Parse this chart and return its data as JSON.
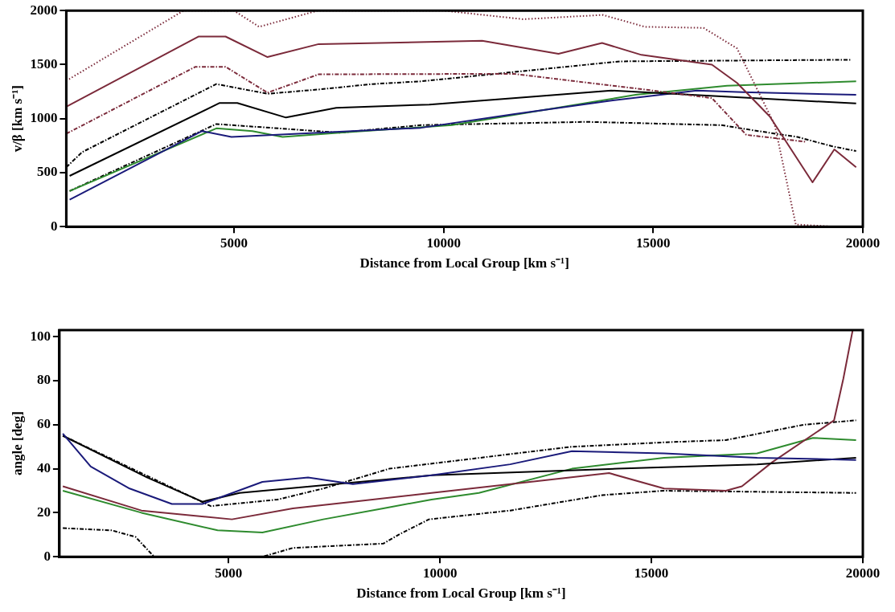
{
  "chart_data": [
    {
      "type": "line",
      "xlabel": "Distance from Local Group [km s⁻¹]",
      "ylabel": "v/β [km s⁻¹]",
      "xlim": [
        1000,
        20000
      ],
      "xticks": [
        5000,
        10000,
        15000,
        20000
      ],
      "ylim": [
        0,
        2000
      ],
      "yticks": [
        0,
        500,
        1000,
        1500,
        2000
      ],
      "grid": false,
      "legend": false,
      "marker": "none",
      "series": [
        {
          "color": "#7b2a3a",
          "line_style": "dotted",
          "x": [
            1000,
            3800,
            5000,
            5600,
            7000,
            10000,
            11900,
            13800,
            14800,
            16200,
            17000,
            17900,
            18400,
            19300
          ],
          "values": [
            1350,
            2000,
            2000,
            1850,
            2000,
            2000,
            1920,
            1960,
            1850,
            1840,
            1650,
            940,
            20,
            0
          ]
        },
        {
          "color": "#7b2a3a",
          "line_style": "solid",
          "x": [
            1000,
            4160,
            4800,
            5800,
            7020,
            10920,
            12740,
            13780,
            14720,
            16400,
            17000,
            17780,
            18800,
            19320,
            19840
          ],
          "values": [
            1110,
            1760,
            1760,
            1570,
            1690,
            1720,
            1600,
            1700,
            1590,
            1500,
            1330,
            1020,
            410,
            715,
            550
          ]
        },
        {
          "color": "#7b2a3a",
          "line_style": "dashed",
          "x": [
            1000,
            4080,
            4800,
            5800,
            7020,
            11660,
            13480,
            14580,
            16400,
            17220,
            18660
          ],
          "values": [
            860,
            1480,
            1480,
            1240,
            1410,
            1415,
            1330,
            1280,
            1190,
            850,
            785
          ]
        },
        {
          "color": "#000000",
          "line_style": "dashed",
          "x": [
            1000,
            1380,
            4580,
            5800,
            7020,
            8300,
            9460,
            14200,
            19700
          ],
          "values": [
            550,
            690,
            1320,
            1230,
            1270,
            1320,
            1345,
            1530,
            1545
          ]
        },
        {
          "color": "#000000",
          "line_style": "solid",
          "x": [
            1080,
            4660,
            5080,
            6240,
            7440,
            9660,
            11660,
            14000,
            19840
          ],
          "values": [
            470,
            1145,
            1145,
            1010,
            1100,
            1130,
            1190,
            1260,
            1140
          ]
        },
        {
          "color": "#1a1a7a",
          "line_style": "solid",
          "x": [
            1080,
            4240,
            4940,
            9460,
            11660,
            13860,
            16040,
            17140,
            19840
          ],
          "values": [
            250,
            885,
            830,
            915,
            1040,
            1160,
            1260,
            1245,
            1220
          ]
        },
        {
          "color": "#2e8b2e",
          "line_style": "solid",
          "x": [
            1080,
            4580,
            5440,
            6160,
            7520,
            10200,
            14580,
            16760,
            19840
          ],
          "values": [
            330,
            910,
            885,
            830,
            870,
            940,
            1220,
            1305,
            1345
          ]
        },
        {
          "color": "#000000",
          "line_style": "dashed",
          "x": [
            1080,
            4580,
            7520,
            9460,
            13400,
            16620,
            17500,
            18440,
            19260,
            19840
          ],
          "values": [
            330,
            950,
            870,
            940,
            970,
            940,
            885,
            830,
            745,
            700
          ]
        }
      ]
    },
    {
      "type": "line",
      "xlabel": "Distance from Local Group [km s⁻¹]",
      "ylabel": "angle [deg]",
      "xlim": [
        1000,
        20000
      ],
      "xticks": [
        5000,
        10000,
        15000,
        20000
      ],
      "ylim": [
        0,
        103
      ],
      "yticks": [
        0,
        20,
        40,
        60,
        80,
        100
      ],
      "grid": false,
      "legend": false,
      "marker": "none",
      "series": [
        {
          "color": "#1a1a7a",
          "line_style": "solid",
          "x": [
            1080,
            1740,
            2660,
            3660,
            4380,
            5800,
            6880,
            7940,
            9800,
            11660,
            13120,
            15300,
            17500,
            19840
          ],
          "values": [
            56,
            41,
            31,
            24,
            24,
            34,
            36,
            33,
            37,
            42,
            48,
            47,
            45,
            44
          ]
        },
        {
          "color": "#000000",
          "line_style": "solid",
          "x": [
            1080,
            3080,
            4380,
            5260,
            9800,
            14200,
            17500,
            19840
          ],
          "values": [
            55,
            36,
            25,
            29,
            37,
            40,
            42,
            45
          ]
        },
        {
          "color": "#7b2a3a",
          "line_style": "solid",
          "x": [
            1080,
            2940,
            5080,
            6520,
            7940,
            9800,
            14000,
            15300,
            16760,
            17140,
            17860,
            19320,
            19540,
            19760
          ],
          "values": [
            32,
            21,
            17,
            22,
            25,
            29,
            38,
            31,
            30,
            32,
            43,
            62,
            81,
            103
          ]
        },
        {
          "color": "#2e8b2e",
          "line_style": "solid",
          "x": [
            1080,
            2940,
            4740,
            5800,
            7240,
            8660,
            9800,
            10920,
            13120,
            15300,
            17500,
            18820,
            19840
          ],
          "values": [
            30,
            20,
            12,
            11,
            17,
            22,
            26,
            29,
            40,
            45,
            47,
            54,
            53
          ]
        },
        {
          "color": "#000000",
          "line_style": "dashed",
          "x": [
            1080,
            4580,
            6160,
            7240,
            8800,
            13120,
            15300,
            16760,
            18600,
            19840
          ],
          "values": [
            55,
            23,
            26,
            31,
            40,
            50,
            52,
            53,
            60,
            62
          ]
        },
        {
          "color": "#000000",
          "line_style": "dashed",
          "x": [
            1080,
            2240,
            2800,
            3240,
            4380,
            5800,
            6520,
            8660,
            9020,
            9740,
            11660,
            13840,
            15300,
            19840
          ],
          "values": [
            13,
            12,
            9,
            0,
            0,
            0,
            4,
            6,
            10,
            17,
            21,
            28,
            30,
            29
          ]
        }
      ]
    }
  ]
}
